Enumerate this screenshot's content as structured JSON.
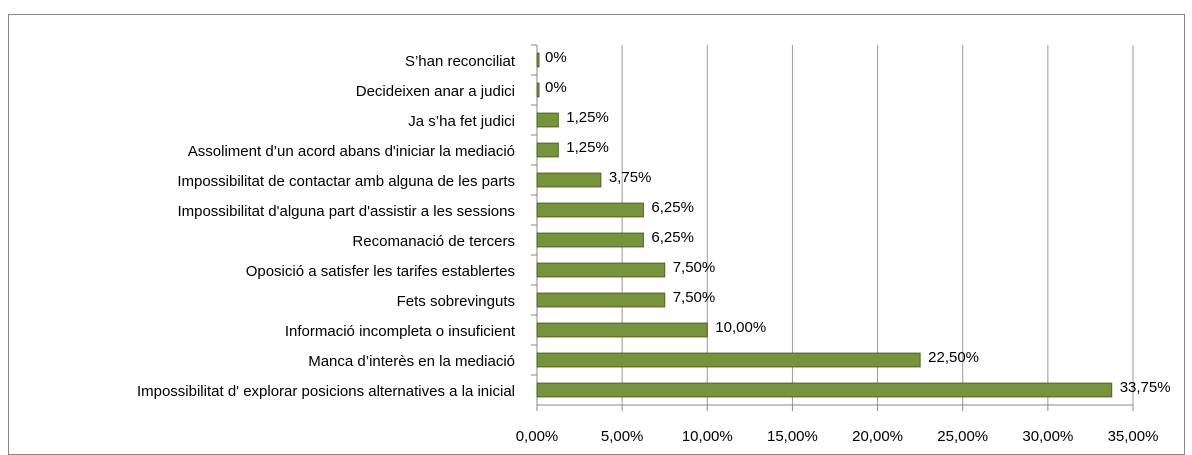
{
  "chart_data": {
    "type": "bar",
    "orientation": "horizontal",
    "categories": [
      "S’han reconciliat",
      "Decideixen anar a judici",
      "Ja s’ha fet judici",
      "Assoliment d’un acord abans d'iniciar la mediació",
      "Impossibilitat de contactar amb alguna de les parts",
      "Impossibilitat d'alguna part d'assistir a les sessions",
      "Recomanació de tercers",
      "Oposició a satisfer les tarifes establertes",
      "Fets sobrevinguts",
      "Informació incompleta o insuficient",
      "Manca d’interès en la mediació",
      "Impossibilitat d' explorar posicions alternatives a la inicial"
    ],
    "values": [
      0,
      0,
      1.25,
      1.25,
      3.75,
      6.25,
      6.25,
      7.5,
      7.5,
      10,
      22.5,
      33.75
    ],
    "value_labels": [
      "0%",
      "0%",
      "1,25%",
      "1,25%",
      "3,75%",
      "6,25%",
      "6,25%",
      "7,50%",
      "7,50%",
      "10,00%",
      "22,50%",
      "33,75%"
    ],
    "color": "#77933c",
    "xlim": [
      0,
      35
    ],
    "xticks": [
      {
        "value": 0,
        "label": "0,00%"
      },
      {
        "value": 5,
        "label": "5,00%"
      },
      {
        "value": 10,
        "label": "10,00%"
      },
      {
        "value": 15,
        "label": "15,00%"
      },
      {
        "value": 20,
        "label": "20,00%"
      },
      {
        "value": 25,
        "label": "25,00%"
      },
      {
        "value": 30,
        "label": "30,00%"
      },
      {
        "value": 35,
        "label": "35,00%"
      }
    ],
    "grid": true
  }
}
